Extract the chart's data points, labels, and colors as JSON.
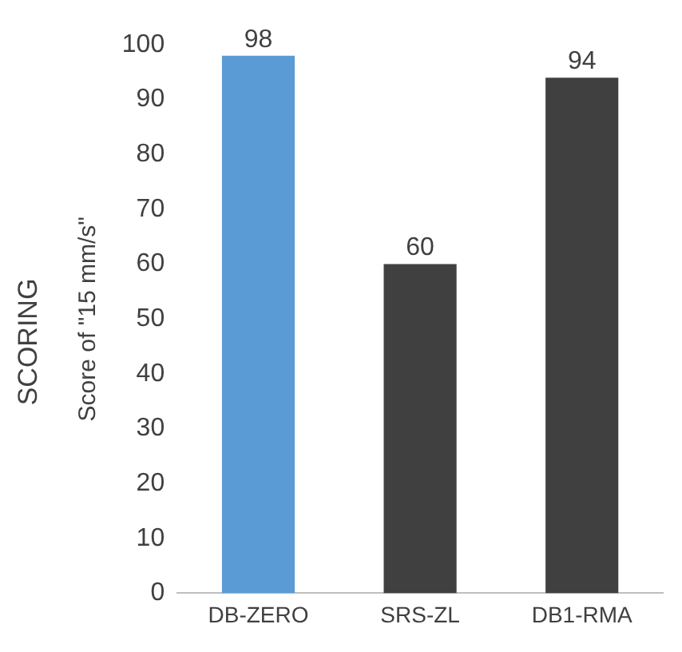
{
  "chart_data": {
    "type": "bar",
    "title": "SCORING",
    "ylabel": "Score of \"15 mm/s\"",
    "categories": [
      "DB-ZERO",
      "SRS-ZL",
      "DB1-RMA"
    ],
    "values": [
      98,
      60,
      94
    ],
    "colors": [
      "#5b9bd5",
      "#404040",
      "#404040"
    ],
    "ylim": [
      0,
      100
    ],
    "yticks": [
      0,
      10,
      20,
      30,
      40,
      50,
      60,
      70,
      80,
      90,
      100
    ],
    "grid": false,
    "legend": false,
    "data_labels": true
  }
}
